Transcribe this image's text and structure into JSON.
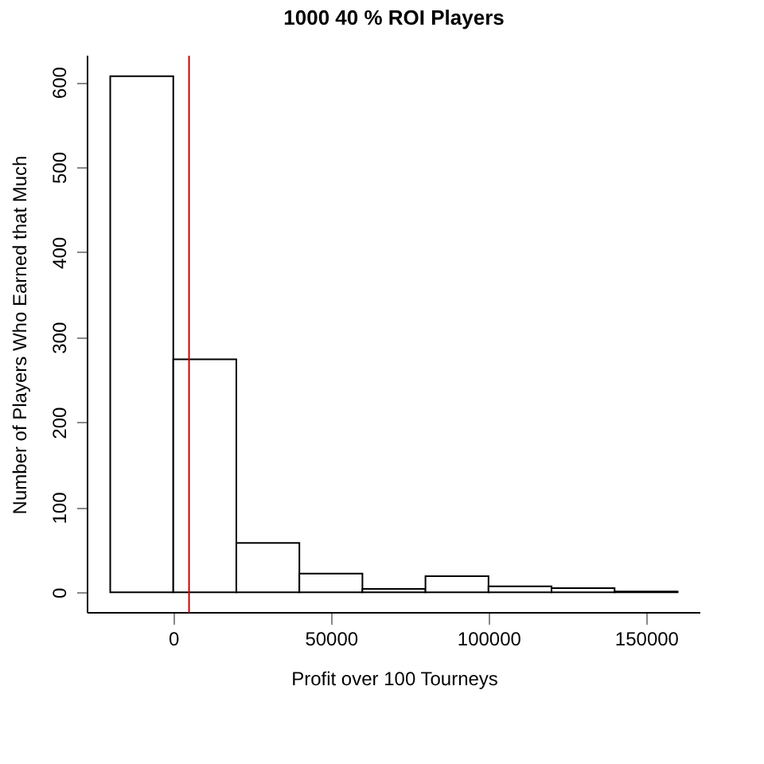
{
  "chart_data": {
    "type": "histogram",
    "title": "1000 40 % ROI Players",
    "xlabel": "Profit over 100 Tourneys",
    "ylabel": "Number of Players Who Earned that Much",
    "bins": [
      -20000,
      0,
      20000,
      40000,
      60000,
      80000,
      100000,
      120000,
      140000,
      160000
    ],
    "values": [
      607,
      274,
      58,
      22,
      4,
      19,
      7,
      5,
      1
    ],
    "color": "#ffffff",
    "xlim": [
      -27200,
      167200
    ],
    "ylim": [
      -24,
      631
    ],
    "xticks": [
      0,
      50000,
      100000,
      150000
    ],
    "yticks": [
      0,
      100,
      200,
      300,
      400,
      500,
      600
    ],
    "ref_lines": [
      {
        "axis": "x",
        "value": 5000,
        "color": "#cc0000"
      }
    ],
    "grid": false
  }
}
